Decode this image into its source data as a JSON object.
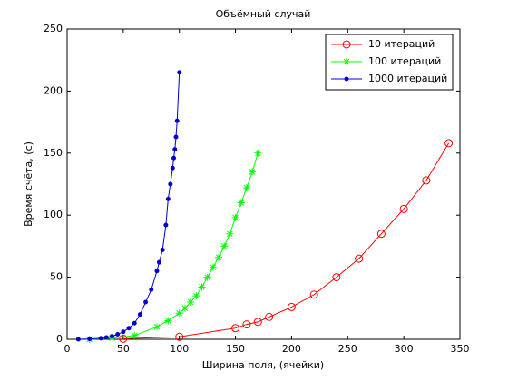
{
  "chart_data": {
    "type": "line",
    "title": "Объёмный случай",
    "x_label": "Ширина поля, (ячейки)",
    "y_label": "Время счёта, (с)",
    "xlim": [
      0,
      350
    ],
    "xticks": [
      0,
      50,
      100,
      150,
      200,
      250,
      300,
      350
    ],
    "ylim": [
      0,
      250
    ],
    "yticks": [
      0,
      50,
      100,
      150,
      200,
      250
    ],
    "legend": "upper right",
    "series": [
      {
        "name": "10 итераций",
        "color": "#ff0000",
        "marker": "o",
        "x": [
          50,
          100,
          150,
          160,
          170,
          180,
          200,
          220,
          240,
          260,
          280,
          300,
          320,
          340
        ],
        "values": [
          0.5,
          2,
          9,
          12,
          14,
          18,
          26,
          36,
          50,
          65,
          85,
          105,
          128,
          158
        ]
      },
      {
        "name": "100 итераций",
        "color": "#00ff00",
        "marker": "*",
        "x": [
          20,
          40,
          60,
          80,
          90,
          100,
          105,
          110,
          115,
          120,
          125,
          130,
          135,
          140,
          145,
          150,
          155,
          160,
          165,
          170
        ],
        "values": [
          0,
          1,
          3,
          10,
          15,
          21,
          25,
          30,
          35,
          42,
          50,
          58,
          66,
          75,
          85,
          98,
          110,
          122,
          135,
          150
        ]
      },
      {
        "name": "1000 итераций",
        "color": "#0000cc",
        "marker": ".",
        "x": [
          10,
          20,
          30,
          35,
          40,
          45,
          50,
          55,
          60,
          65,
          70,
          75,
          80,
          82,
          85,
          88,
          90,
          92,
          94,
          95,
          96,
          97,
          98,
          100
        ],
        "values": [
          0,
          0.3,
          0.8,
          1.5,
          2.5,
          4,
          6,
          9,
          13,
          20,
          30,
          40,
          55,
          62,
          72,
          92,
          113,
          125,
          138,
          146,
          153,
          163,
          176,
          215
        ]
      }
    ]
  }
}
